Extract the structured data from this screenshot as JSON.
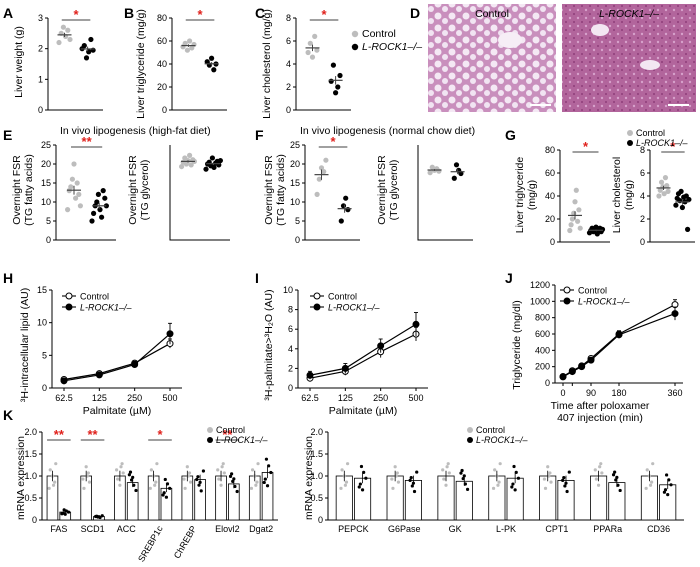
{
  "panels": {
    "A": {
      "letter": "A",
      "ylabel": "Liver weight (g)"
    },
    "B": {
      "letter": "B",
      "ylabel": "Liver triglyceride (mg/g)"
    },
    "C": {
      "letter": "C",
      "ylabel": "Liver cholesterol (mg/g)"
    },
    "D": {
      "letter": "D",
      "label_control": "Control",
      "label_ko": "L-ROCK1–/–"
    },
    "E": {
      "letter": "E",
      "title": "In vivo lipogenesis (high-fat diet)",
      "ylabel1a": "Overnight FSR",
      "ylabel1b": "(TG fatty acids)",
      "ylabel2a": "Overnight FSR",
      "ylabel2b": "(TG glycerol)"
    },
    "F": {
      "letter": "F",
      "title": "In vivo lipogenesis (normal chow diet)",
      "ylabel1a": "Overnight FSR",
      "ylabel1b": "(TG fatty acids)",
      "ylabel2a": "Overnight FSR",
      "ylabel2b": "(TG glycerol)"
    },
    "G": {
      "letter": "G",
      "ylabel1a": "Liver triglyceride",
      "ylabel1b": "(mg/g)",
      "ylabel2a": "Liver cholesterol",
      "ylabel2b": "(mg/g)"
    },
    "H": {
      "letter": "H"
    },
    "I": {
      "letter": "I"
    },
    "J": {
      "letter": "J"
    },
    "K": {
      "letter": "K"
    }
  },
  "legend": {
    "control": "Control",
    "ko": "L-ROCK1–/–"
  },
  "colors": {
    "control": "#bdbdbd",
    "ko": "#000000",
    "significance": "#e0201b"
  },
  "chart_data": [
    {
      "id": "A",
      "type": "scatter",
      "ylabel": "Liver weight (g)",
      "ylim": [
        0,
        3
      ],
      "yticks": [
        0,
        1,
        2,
        3
      ],
      "series": [
        {
          "name": "Control",
          "values": [
            2.2,
            2.5,
            2.7,
            2.4,
            2.6,
            2.3
          ]
        },
        {
          "name": "L-ROCK1–/–",
          "values": [
            2.0,
            2.1,
            1.7,
            1.9,
            2.3,
            1.95
          ]
        }
      ],
      "significance": "*"
    },
    {
      "id": "B",
      "type": "scatter",
      "ylabel": "Liver triglyceride (mg/g)",
      "ylim": [
        0,
        80
      ],
      "yticks": [
        0,
        20,
        40,
        60,
        80
      ],
      "series": [
        {
          "name": "Control",
          "values": [
            55,
            58,
            52,
            60,
            54,
            57
          ]
        },
        {
          "name": "L-ROCK1–/–",
          "values": [
            42,
            39,
            45,
            35,
            40
          ]
        }
      ],
      "significance": "*"
    },
    {
      "id": "C",
      "type": "scatter",
      "ylabel": "Liver cholesterol (mg/g)",
      "ylim": [
        0,
        8
      ],
      "yticks": [
        0,
        2,
        4,
        6,
        8
      ],
      "series": [
        {
          "name": "Control",
          "values": [
            5.0,
            5.8,
            4.6,
            6.4,
            5.2
          ]
        },
        {
          "name": "L-ROCK1–/–",
          "values": [
            2.5,
            3.9,
            1.5,
            2.0,
            3.0
          ]
        }
      ],
      "significance": "*"
    },
    {
      "id": "E1",
      "type": "scatter",
      "ylabel": "Overnight FSR (TG fatty acids)",
      "ylim": [
        0,
        25
      ],
      "yticks": [
        0,
        5,
        10,
        15,
        20,
        25
      ],
      "series": [
        {
          "name": "Control",
          "values": [
            8,
            13,
            14,
            16,
            20,
            11,
            15,
            12,
            9
          ]
        },
        {
          "name": "L-ROCK1–/–",
          "values": [
            5,
            7,
            9,
            10,
            12,
            8,
            6,
            13,
            11,
            9
          ]
        }
      ],
      "significance": "**"
    },
    {
      "id": "E2",
      "type": "scatter",
      "ylabel": "Overnight FSR (TG glycerol)",
      "ylim": [
        0,
        110
      ],
      "yticks": [],
      "series": [
        {
          "name": "Control",
          "values": [
            85,
            90,
            95,
            88,
            92,
            98,
            87,
            93,
            91
          ]
        },
        {
          "name": "L-ROCK1–/–",
          "values": [
            82,
            88,
            90,
            86,
            95,
            84,
            89,
            91,
            87,
            92
          ]
        }
      ]
    },
    {
      "id": "F1",
      "type": "scatter",
      "ylabel": "Overnight FSR (TG fatty acids)",
      "ylim": [
        0,
        25
      ],
      "yticks": [
        0,
        5,
        10,
        15,
        20,
        25
      ],
      "series": [
        {
          "name": "Control",
          "values": [
            12,
            16,
            19,
            18,
            21
          ]
        },
        {
          "name": "L-ROCK1–/–",
          "values": [
            5,
            9,
            11,
            8
          ]
        }
      ],
      "significance": "*"
    },
    {
      "id": "F2",
      "type": "scatter",
      "ylabel": "Overnight FSR (TG glycerol)",
      "ylim": [
        0,
        120
      ],
      "yticks": [],
      "series": [
        {
          "name": "Control",
          "values": [
            85,
            92,
            88,
            90,
            87
          ]
        },
        {
          "name": "L-ROCK1–/–",
          "values": [
            78,
            95,
            88,
            84
          ]
        }
      ]
    },
    {
      "id": "G1",
      "type": "scatter",
      "ylabel": "Liver triglyceride (mg/g)",
      "ylim": [
        0,
        80
      ],
      "yticks": [
        0,
        20,
        40,
        60,
        80
      ],
      "series": [
        {
          "name": "Control",
          "values": [
            10,
            15,
            20,
            25,
            35,
            45,
            18,
            28,
            12
          ]
        },
        {
          "name": "L-ROCK1–/–",
          "values": [
            8,
            10,
            12,
            9,
            11,
            13,
            7,
            10,
            12,
            9,
            11
          ]
        }
      ],
      "significance": "*"
    },
    {
      "id": "G2",
      "type": "scatter",
      "ylabel": "Liver cholesterol (mg/g)",
      "ylim": [
        0,
        8
      ],
      "yticks": [
        0,
        2,
        4,
        6,
        8
      ],
      "series": [
        {
          "name": "Control",
          "values": [
            4.0,
            4.5,
            5.2,
            4.8,
            4.2,
            5.6,
            4.9,
            4.4
          ]
        },
        {
          "name": "L-ROCK1–/–",
          "values": [
            3.2,
            3.8,
            4.2,
            3.6,
            4.4,
            3.0,
            3.9,
            3.5,
            4.0,
            1.1,
            3.7
          ]
        }
      ],
      "significance": "*"
    },
    {
      "id": "H",
      "type": "line",
      "ylabel": "³H-intracellular lipid (AU)",
      "xlabel": "Palmitate (µM)",
      "x": [
        62.5,
        125,
        250,
        500
      ],
      "xticks": [
        "62.5",
        "125",
        "250",
        "500"
      ],
      "ylim": [
        0,
        15
      ],
      "yticks": [
        0,
        5,
        10,
        15
      ],
      "series": [
        {
          "name": "Control",
          "values": [
            1.3,
            2.2,
            3.8,
            6.8
          ],
          "err": [
            0.2,
            0.3,
            0.4,
            0.7
          ]
        },
        {
          "name": "L-ROCK1–/–",
          "values": [
            1.1,
            2.0,
            3.6,
            8.3
          ],
          "err": [
            0.2,
            0.3,
            0.5,
            1.6
          ]
        }
      ]
    },
    {
      "id": "I",
      "type": "line",
      "ylabel": "³H-palmitate>³H₂O (AU)",
      "xlabel": "Palmitate (µM)",
      "x": [
        62.5,
        125,
        250,
        500
      ],
      "xticks": [
        "62.5",
        "125",
        "250",
        "500"
      ],
      "ylim": [
        0,
        10
      ],
      "yticks": [
        0,
        2,
        4,
        6,
        8,
        10
      ],
      "series": [
        {
          "name": "Control",
          "values": [
            1.0,
            1.7,
            3.7,
            5.5
          ],
          "err": [
            0.3,
            0.4,
            0.6,
            0.7
          ]
        },
        {
          "name": "L-ROCK1–/–",
          "values": [
            1.3,
            2.0,
            4.3,
            6.5
          ],
          "err": [
            0.4,
            0.5,
            0.7,
            1.2
          ]
        }
      ]
    },
    {
      "id": "J",
      "type": "line",
      "ylabel": "Triglyceride (mg/dl)",
      "xlabel": "Time after poloxamer 407 injection (min)",
      "x": [
        0,
        30,
        60,
        90,
        180,
        360
      ],
      "xticks": [
        "0",
        "90",
        "180",
        "360"
      ],
      "extra_ticks": [
        "30"
      ],
      "ylim": [
        0,
        1200
      ],
      "yticks": [
        0,
        200,
        400,
        600,
        800,
        1000,
        1200
      ],
      "series": [
        {
          "name": "Control",
          "values": [
            80,
            150,
            210,
            300,
            600,
            960
          ],
          "err": [
            10,
            15,
            20,
            30,
            40,
            60
          ]
        },
        {
          "name": "L-ROCK1–/–",
          "values": [
            75,
            140,
            200,
            280,
            590,
            850
          ],
          "err": [
            10,
            15,
            20,
            30,
            40,
            80
          ]
        }
      ]
    },
    {
      "id": "K1",
      "type": "bar",
      "ylabel": "mRNA expression",
      "ylim": [
        0,
        2
      ],
      "yticks": [
        0,
        0.5,
        1.0,
        1.5,
        2.0
      ],
      "categories": [
        "FAS",
        "SCD1",
        "ACC",
        "SREBP1c",
        "ChREBP",
        "Elovl2",
        "Dgat2"
      ],
      "series": [
        {
          "name": "Control",
          "values": [
            1.0,
            1.0,
            1.0,
            1.0,
            1.0,
            1.0,
            1.0
          ]
        },
        {
          "name": "L-ROCK1–/–",
          "values": [
            0.18,
            0.08,
            0.85,
            0.72,
            0.92,
            0.82,
            1.08
          ]
        }
      ],
      "significance": [
        "**",
        "**",
        "",
        "*",
        "",
        "**",
        ""
      ]
    },
    {
      "id": "K2",
      "type": "bar",
      "ylabel": "mRNA expression",
      "ylim": [
        0,
        2
      ],
      "yticks": [
        0,
        0.5,
        1.0,
        1.5,
        2.0
      ],
      "categories": [
        "PEPCK",
        "G6Pase",
        "GK",
        "L-PK",
        "CPT1",
        "PPARa",
        "CD36"
      ],
      "series": [
        {
          "name": "Control",
          "values": [
            1.0,
            1.0,
            1.0,
            1.0,
            1.0,
            1.0,
            1.0
          ]
        },
        {
          "name": "L-ROCK1–/–",
          "values": [
            0.95,
            0.9,
            0.88,
            0.95,
            0.9,
            0.85,
            0.8
          ]
        }
      ]
    }
  ]
}
